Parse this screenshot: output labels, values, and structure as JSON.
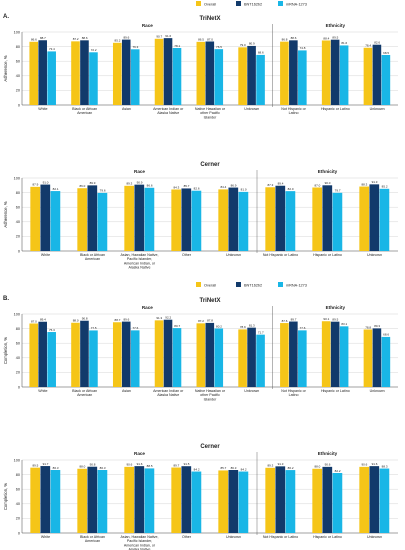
{
  "legend": {
    "labels": [
      "Overall",
      "BNT162b2",
      "mRNA-1273"
    ]
  },
  "colors": {
    "overall": "#f5c518",
    "bnt": "#123a6b",
    "mrna": "#19b6e6",
    "grid": "#bbbbbb",
    "axis": "#444444",
    "text": "#222222"
  },
  "sections": [
    {
      "label": "A.",
      "ylabel": "Adherence, %"
    },
    {
      "label": "B.",
      "ylabel": "Completion, %"
    }
  ],
  "chart_data": [
    {
      "type": "bar",
      "title": "TriNetX",
      "panel_label": "A.",
      "ylabel": "Adherence, %",
      "ylim": [
        0,
        100
      ],
      "yticks": [
        0,
        20,
        40,
        60,
        80,
        100
      ],
      "group_headers": [
        {
          "label": "Race"
        },
        {
          "label": "Ethnicity"
        }
      ],
      "categories": [
        "White",
        "Black or African American",
        "Asian",
        "American Indian or Alaska Native",
        "Native Hawaiian or other Pacific Islander",
        "Unknown",
        "Not Hispanic or Latino",
        "Hispanic or Latino",
        "Unknown"
      ],
      "split_after": 6,
      "series": [
        {
          "name": "Overall",
          "values": [
            86.6,
            87.2,
            85.2,
            90.7,
            86.5,
            79.0,
            86.8,
            88.4,
            78.4
          ]
        },
        {
          "name": "BNT162b2",
          "values": [
            88.7,
            88.6,
            89.6,
            91.6,
            87.0,
            80.9,
            88.6,
            89.5,
            82.6
          ]
        },
        {
          "name": "mRNA-1273",
          "values": [
            73.4,
            72.2,
            76.3,
            78.1,
            76.5,
            68.6,
            74.8,
            81.6,
            68.5
          ]
        }
      ]
    },
    {
      "type": "bar",
      "title": "Cerner",
      "panel_label": "",
      "ylabel": "Adherence, %",
      "ylim": [
        0,
        100
      ],
      "yticks": [
        0,
        20,
        40,
        60,
        80,
        100
      ],
      "group_headers": [
        {
          "label": "Race"
        },
        {
          "label": "Ethnicity"
        }
      ],
      "categories": [
        "White",
        "Black or African American",
        "Asian, Hawaiian Native, Pacific Islander, American Indian, or Alaska Native",
        "Other",
        "Unknown",
        "Not Hispanic or Latino",
        "Hispanic or Latino",
        "Unknown"
      ],
      "split_after": 5,
      "series": [
        {
          "name": "Overall",
          "values": [
            87.9,
            86.0,
            89.3,
            84.3,
            84.4,
            87.3,
            87.0,
            88.3
          ]
        },
        {
          "name": "BNT162b2",
          "values": [
            91.0,
            89.9,
            90.9,
            85.7,
            86.9,
            89.4,
            90.0,
            91.3
          ]
        },
        {
          "name": "mRNA-1273",
          "values": [
            82.1,
            79.6,
            86.6,
            82.6,
            81.0,
            82.0,
            79.7,
            85.2
          ]
        }
      ]
    },
    {
      "type": "bar",
      "title": "TriNetX",
      "panel_label": "B.",
      "ylabel": "Completion, %",
      "ylim": [
        0,
        100
      ],
      "yticks": [
        0,
        20,
        40,
        60,
        80,
        100
      ],
      "group_headers": [
        {
          "label": "Race"
        },
        {
          "label": "Ethnicity"
        }
      ],
      "categories": [
        "White",
        "Black or African American",
        "Asian",
        "American Indian or Alaska Native",
        "Native Hawaiian or other Pacific Islander",
        "Unknown",
        "Not Hispanic or Latino",
        "Hispanic or Latino",
        "Unknown"
      ],
      "split_after": 6,
      "series": [
        {
          "name": "Overall",
          "values": [
            87.0,
            88.0,
            88.7,
            91.3,
            87.2,
            78.9,
            87.6,
            90.1,
            78.8
          ]
        },
        {
          "name": "BNT162b2",
          "values": [
            89.4,
            90.8,
            89.6,
            92.2,
            87.8,
            81.3,
            89.7,
            89.5,
            80.3
          ]
        },
        {
          "name": "mRNA-1273",
          "values": [
            75.3,
            77.5,
            77.6,
            80.7,
            80.2,
            71.7,
            77.6,
            83.1,
            68.6
          ]
        }
      ]
    },
    {
      "type": "bar",
      "title": "Cerner",
      "panel_label": "",
      "ylabel": "Completion, %",
      "ylim": [
        0,
        100
      ],
      "yticks": [
        0,
        20,
        40,
        60,
        80,
        100
      ],
      "group_headers": [
        {
          "label": "Race"
        },
        {
          "label": "Ethnicity"
        }
      ],
      "categories": [
        "White",
        "Black or African American",
        "Asian, Hawaiian Native, Pacific Islander, American Indian, or Alaska Native",
        "Other",
        "Unknown",
        "Not Hispanic or Latino",
        "Hispanic or Latino",
        "Unknown"
      ],
      "split_after": 5,
      "series": [
        {
          "name": "Overall",
          "values": [
            89.5,
            88.0,
            90.6,
            89.7,
            85.7,
            89.3,
            88.0,
            90.6
          ]
        },
        {
          "name": "BNT162b2",
          "values": [
            91.7,
            90.8,
            91.6,
            91.5,
            86.3,
            91.3,
            90.6,
            91.6
          ]
        },
        {
          "name": "mRNA-1273",
          "values": [
            86.3,
            86.3,
            88.5,
            84.2,
            84.2,
            86.2,
            82.2,
            88.3
          ]
        }
      ]
    }
  ]
}
